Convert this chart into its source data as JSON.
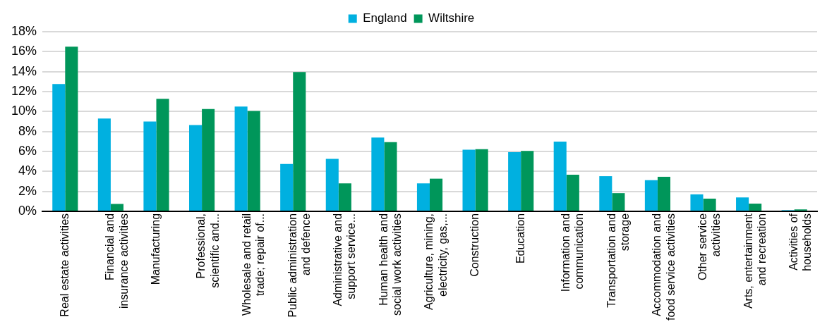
{
  "chart_data": {
    "type": "bar",
    "categories": [
      "Real estate activities",
      "Financial and\ninsurance activities",
      "Manufacturing",
      "Professional,\nscientific and...",
      "Wholesale and retail\ntrade; repair of...",
      "Public administration\nand defence",
      "Administrative and\nsupport service...",
      "Human health and\nsocial work activities",
      "Agriculture, mining,\nelectricity, gas,...",
      "Construction",
      "Education",
      "Information and\ncommunication",
      "Transportation and\nstorage",
      "Accommodation and\nfood service activities",
      "Other service\nactivities",
      "Arts, entertainment\nand recreation",
      "Activities of\nhouseholds"
    ],
    "series": [
      {
        "name": "England",
        "color": "#00b0e0",
        "values": [
          12.75,
          9.3,
          9.0,
          8.64,
          10.5,
          4.75,
          5.25,
          7.4,
          2.8,
          6.17,
          5.93,
          6.98,
          3.52,
          3.12,
          1.7,
          1.39,
          0.12
        ]
      },
      {
        "name": "Wiltshire",
        "color": "#00965a",
        "values": [
          16.5,
          0.74,
          11.27,
          10.25,
          10.06,
          13.95,
          2.8,
          6.94,
          3.27,
          6.23,
          6.05,
          3.67,
          1.82,
          3.46,
          1.27,
          0.77,
          0.19
        ]
      }
    ],
    "ylim": [
      0,
      18
    ],
    "yticks": [
      {
        "value": 0,
        "label": "0%"
      },
      {
        "value": 2,
        "label": "2%"
      },
      {
        "value": 4,
        "label": "4%"
      },
      {
        "value": 6,
        "label": "6%"
      },
      {
        "value": 8,
        "label": "8%"
      },
      {
        "value": 10,
        "label": "10%"
      },
      {
        "value": 12,
        "label": "12%"
      },
      {
        "value": 14,
        "label": "14%"
      },
      {
        "value": 16,
        "label": "16%"
      },
      {
        "value": 18,
        "label": "18%"
      }
    ],
    "grid": "y",
    "legend": "top"
  }
}
